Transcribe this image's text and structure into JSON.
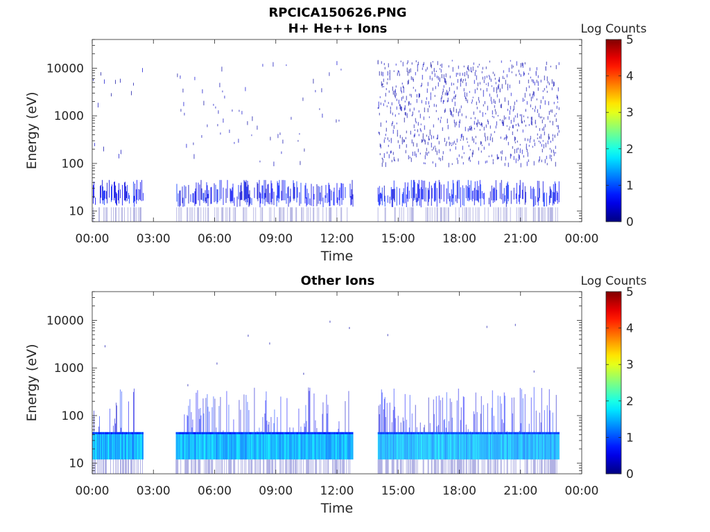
{
  "figure": {
    "title_line1": "RPCICA150626.PNG",
    "title_line2": "H+ He++ Ions",
    "panel2_title": "Other Ions"
  },
  "chart_data": [
    {
      "type": "heatmap",
      "title": "H+ He++ Ions",
      "xlabel": "Time",
      "ylabel": "Energy (eV)",
      "x_ticks": [
        "00:00",
        "03:00",
        "06:00",
        "09:00",
        "12:00",
        "15:00",
        "18:00",
        "21:00",
        "00:00"
      ],
      "xlim": [
        "00:00",
        "24:00"
      ],
      "y_scale": "log",
      "y_ticks": [
        10,
        100,
        1000,
        10000
      ],
      "ylim": [
        6,
        40000
      ],
      "colorbar": {
        "label": "Log Counts",
        "ticks": [
          0,
          1,
          2,
          3,
          4,
          5
        ],
        "range": [
          0,
          5
        ],
        "colormap": "jet"
      },
      "data_intervals_hours": [
        [
          0.0,
          2.5
        ],
        [
          4.1,
          12.8
        ],
        [
          14.0,
          22.9
        ]
      ],
      "features": {
        "low_energy_band_eV": [
          12,
          45
        ],
        "low_energy_log_counts": [
          0.3,
          0.9
        ],
        "dense_high_energy_interval_hours": [
          14.0,
          22.9
        ],
        "high_energy_range_eV": [
          100,
          15000
        ],
        "high_energy_log_counts": [
          0.1,
          0.4
        ]
      }
    },
    {
      "type": "heatmap",
      "title": "Other Ions",
      "xlabel": "Time",
      "ylabel": "Energy (eV)",
      "x_ticks": [
        "00:00",
        "03:00",
        "06:00",
        "09:00",
        "12:00",
        "15:00",
        "18:00",
        "21:00",
        "00:00"
      ],
      "xlim": [
        "00:00",
        "24:00"
      ],
      "y_scale": "log",
      "y_ticks": [
        10,
        100,
        1000,
        10000
      ],
      "ylim": [
        6,
        40000
      ],
      "colorbar": {
        "label": "Log Counts",
        "ticks": [
          0,
          1,
          2,
          3,
          4,
          5
        ],
        "range": [
          0,
          5
        ],
        "colormap": "jet"
      },
      "data_intervals_hours": [
        [
          0.0,
          2.5
        ],
        [
          4.1,
          12.8
        ],
        [
          14.0,
          22.9
        ]
      ],
      "features": {
        "low_energy_band_eV": [
          12,
          45
        ],
        "low_energy_log_counts": [
          1.2,
          1.8
        ],
        "spike_range_eV": [
          45,
          400
        ],
        "spike_log_counts": [
          0.3,
          0.9
        ]
      }
    }
  ]
}
